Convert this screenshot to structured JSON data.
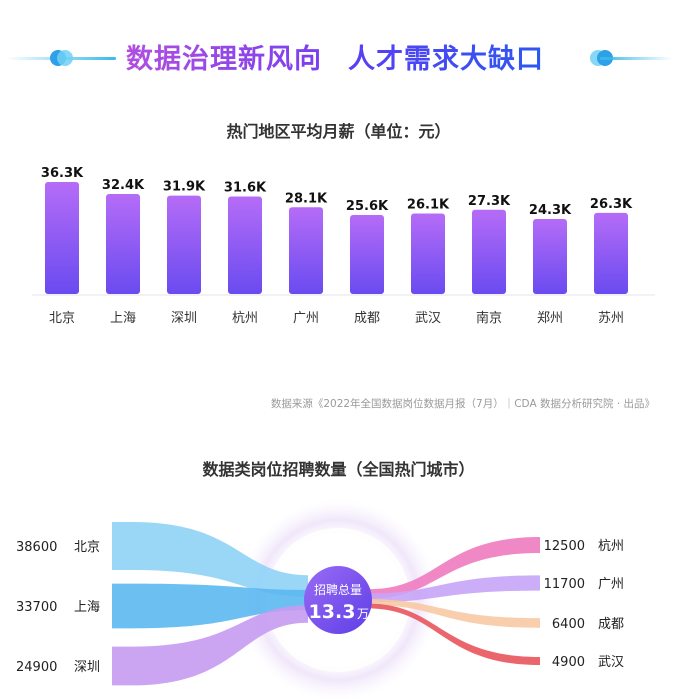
{
  "header": {
    "title_part1": "数据治理新风向",
    "title_part2": "人才需求大缺口",
    "accent_colors": [
      "#b14fe0",
      "#2b58f0",
      "#3ab8ea"
    ]
  },
  "source_note": "数据来源《2022年全国数据岗位数据月报（7月）｜CDA 数据分析研究院 · 出品》",
  "chart_data": [
    {
      "type": "bar",
      "title": "热门地区平均月薪（单位：元）",
      "categories": [
        "北京",
        "上海",
        "深圳",
        "杭州",
        "广州",
        "成都",
        "武汉",
        "南京",
        "郑州",
        "苏州"
      ],
      "values": [
        36.3,
        32.4,
        31.9,
        31.6,
        28.1,
        25.6,
        26.1,
        27.3,
        24.3,
        26.3
      ],
      "value_labels": [
        "36.3K",
        "32.4K",
        "31.9K",
        "31.6K",
        "28.1K",
        "25.6K",
        "26.1K",
        "27.3K",
        "24.3K",
        "26.3K"
      ],
      "xlabel": "",
      "ylabel": "",
      "ylim": [
        0,
        36.3
      ],
      "grid": false,
      "colors": [
        "#b56cf7",
        "#6a4bf0"
      ]
    },
    {
      "type": "sankey",
      "title": "数据类岗位招聘数量（全国热门城市）",
      "center": {
        "label": "招聘总量",
        "value": "13.3",
        "unit": "万"
      },
      "sources": [
        {
          "name": "北京",
          "value": 38600,
          "color": "#8fd3f6"
        },
        {
          "name": "上海",
          "value": 33700,
          "color": "#5bb8f0"
        },
        {
          "name": "深圳",
          "value": 24900,
          "color": "#c59bf1"
        }
      ],
      "targets": [
        {
          "name": "杭州",
          "value": 12500,
          "color": "#f07bc0"
        },
        {
          "name": "广州",
          "value": 11700,
          "color": "#c6a4f7"
        },
        {
          "name": "成都",
          "value": 6400,
          "color": "#f7c9a3"
        },
        {
          "name": "武汉",
          "value": 4900,
          "color": "#e8555c"
        }
      ]
    }
  ]
}
